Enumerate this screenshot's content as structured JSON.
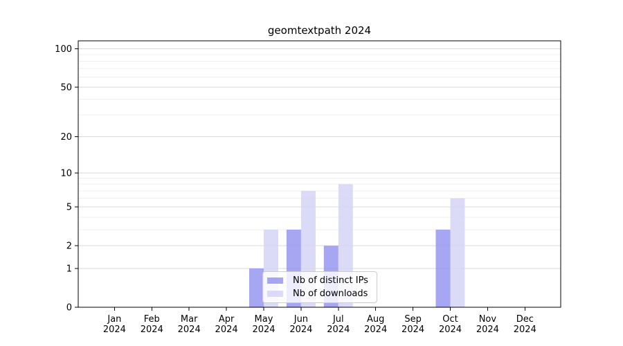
{
  "chart_data": {
    "type": "bar",
    "title": "geomtextpath 2024",
    "categories": [
      "Jan 2024",
      "Feb 2024",
      "Mar 2024",
      "Apr 2024",
      "May 2024",
      "Jun 2024",
      "Jul 2024",
      "Aug 2024",
      "Sep 2024",
      "Oct 2024",
      "Nov 2024",
      "Dec 2024"
    ],
    "series": [
      {
        "name": "Nb of distinct IPs",
        "color": "#9090f0",
        "opacity": 0.8,
        "values": [
          0,
          0,
          0,
          0,
          1,
          3,
          2,
          0,
          0,
          3,
          0,
          0
        ]
      },
      {
        "name": "Nb of downloads",
        "color": "#d2d2f5",
        "opacity": 0.8,
        "values": [
          0,
          0,
          0,
          0,
          3,
          7,
          8,
          0,
          0,
          6,
          0,
          0
        ]
      }
    ],
    "xlabel": "",
    "ylabel": "",
    "yscale": "log1p",
    "ytick_values": [
      0,
      1,
      2,
      5,
      10,
      20,
      50,
      100
    ],
    "ytick_labels": [
      "0",
      "1",
      "2",
      "5",
      "10",
      "20",
      "50",
      "100"
    ],
    "minor_grid_values": [
      3,
      4,
      6,
      7,
      8,
      9,
      30,
      40,
      60,
      70,
      80,
      90
    ],
    "ylim": [
      0,
      118
    ],
    "grid": true,
    "legend": {
      "position": "lower center"
    },
    "colors": {
      "major_grid": "#d9d9d9",
      "minor_grid": "#efefef",
      "spine": "#000000",
      "text": "#000000",
      "legend_border": "#cccccc"
    }
  }
}
